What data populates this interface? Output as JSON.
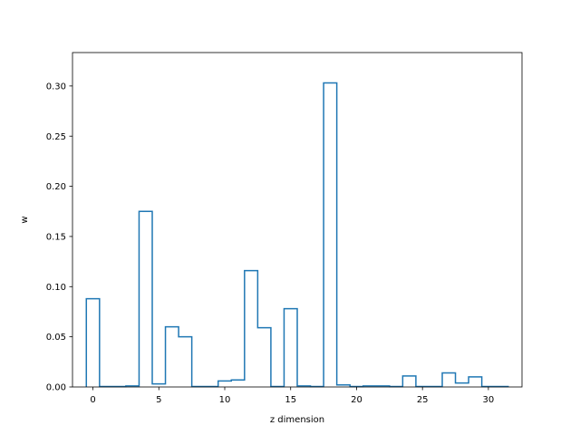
{
  "chart_data": {
    "type": "step",
    "title": "",
    "xlabel": "z dimension",
    "ylabel": "w",
    "xlim": [
      -1.55,
      32.55
    ],
    "ylim": [
      0,
      0.3333
    ],
    "xticks": [
      0,
      5,
      10,
      15,
      20,
      25,
      30
    ],
    "xtick_labels": [
      "0",
      "5",
      "10",
      "15",
      "20",
      "25",
      "30"
    ],
    "yticks": [
      0.0,
      0.05,
      0.1,
      0.15,
      0.2,
      0.25,
      0.3
    ],
    "ytick_labels": [
      "0.00",
      "0.05",
      "0.10",
      "0.15",
      "0.20",
      "0.25",
      "0.30"
    ],
    "grid": false,
    "color": "#1f77b4",
    "series": [
      {
        "x": [
          0,
          1,
          2,
          3,
          4,
          5,
          6,
          7,
          8,
          9,
          10,
          11,
          12,
          13,
          14,
          15,
          16,
          17,
          18,
          19,
          20,
          21,
          22,
          23,
          24,
          25,
          26,
          27,
          28,
          29,
          30,
          31
        ],
        "values": [
          0.088,
          0.0005,
          0.0005,
          0.001,
          0.175,
          0.003,
          0.06,
          0.05,
          0.0005,
          0.0005,
          0.006,
          0.007,
          0.116,
          0.059,
          0.0005,
          0.078,
          0.001,
          0.0005,
          0.303,
          0.002,
          0.0005,
          0.001,
          0.001,
          0.0005,
          0.011,
          0.0005,
          0.0005,
          0.014,
          0.004,
          0.01,
          0.0005,
          0.0005
        ]
      }
    ]
  }
}
